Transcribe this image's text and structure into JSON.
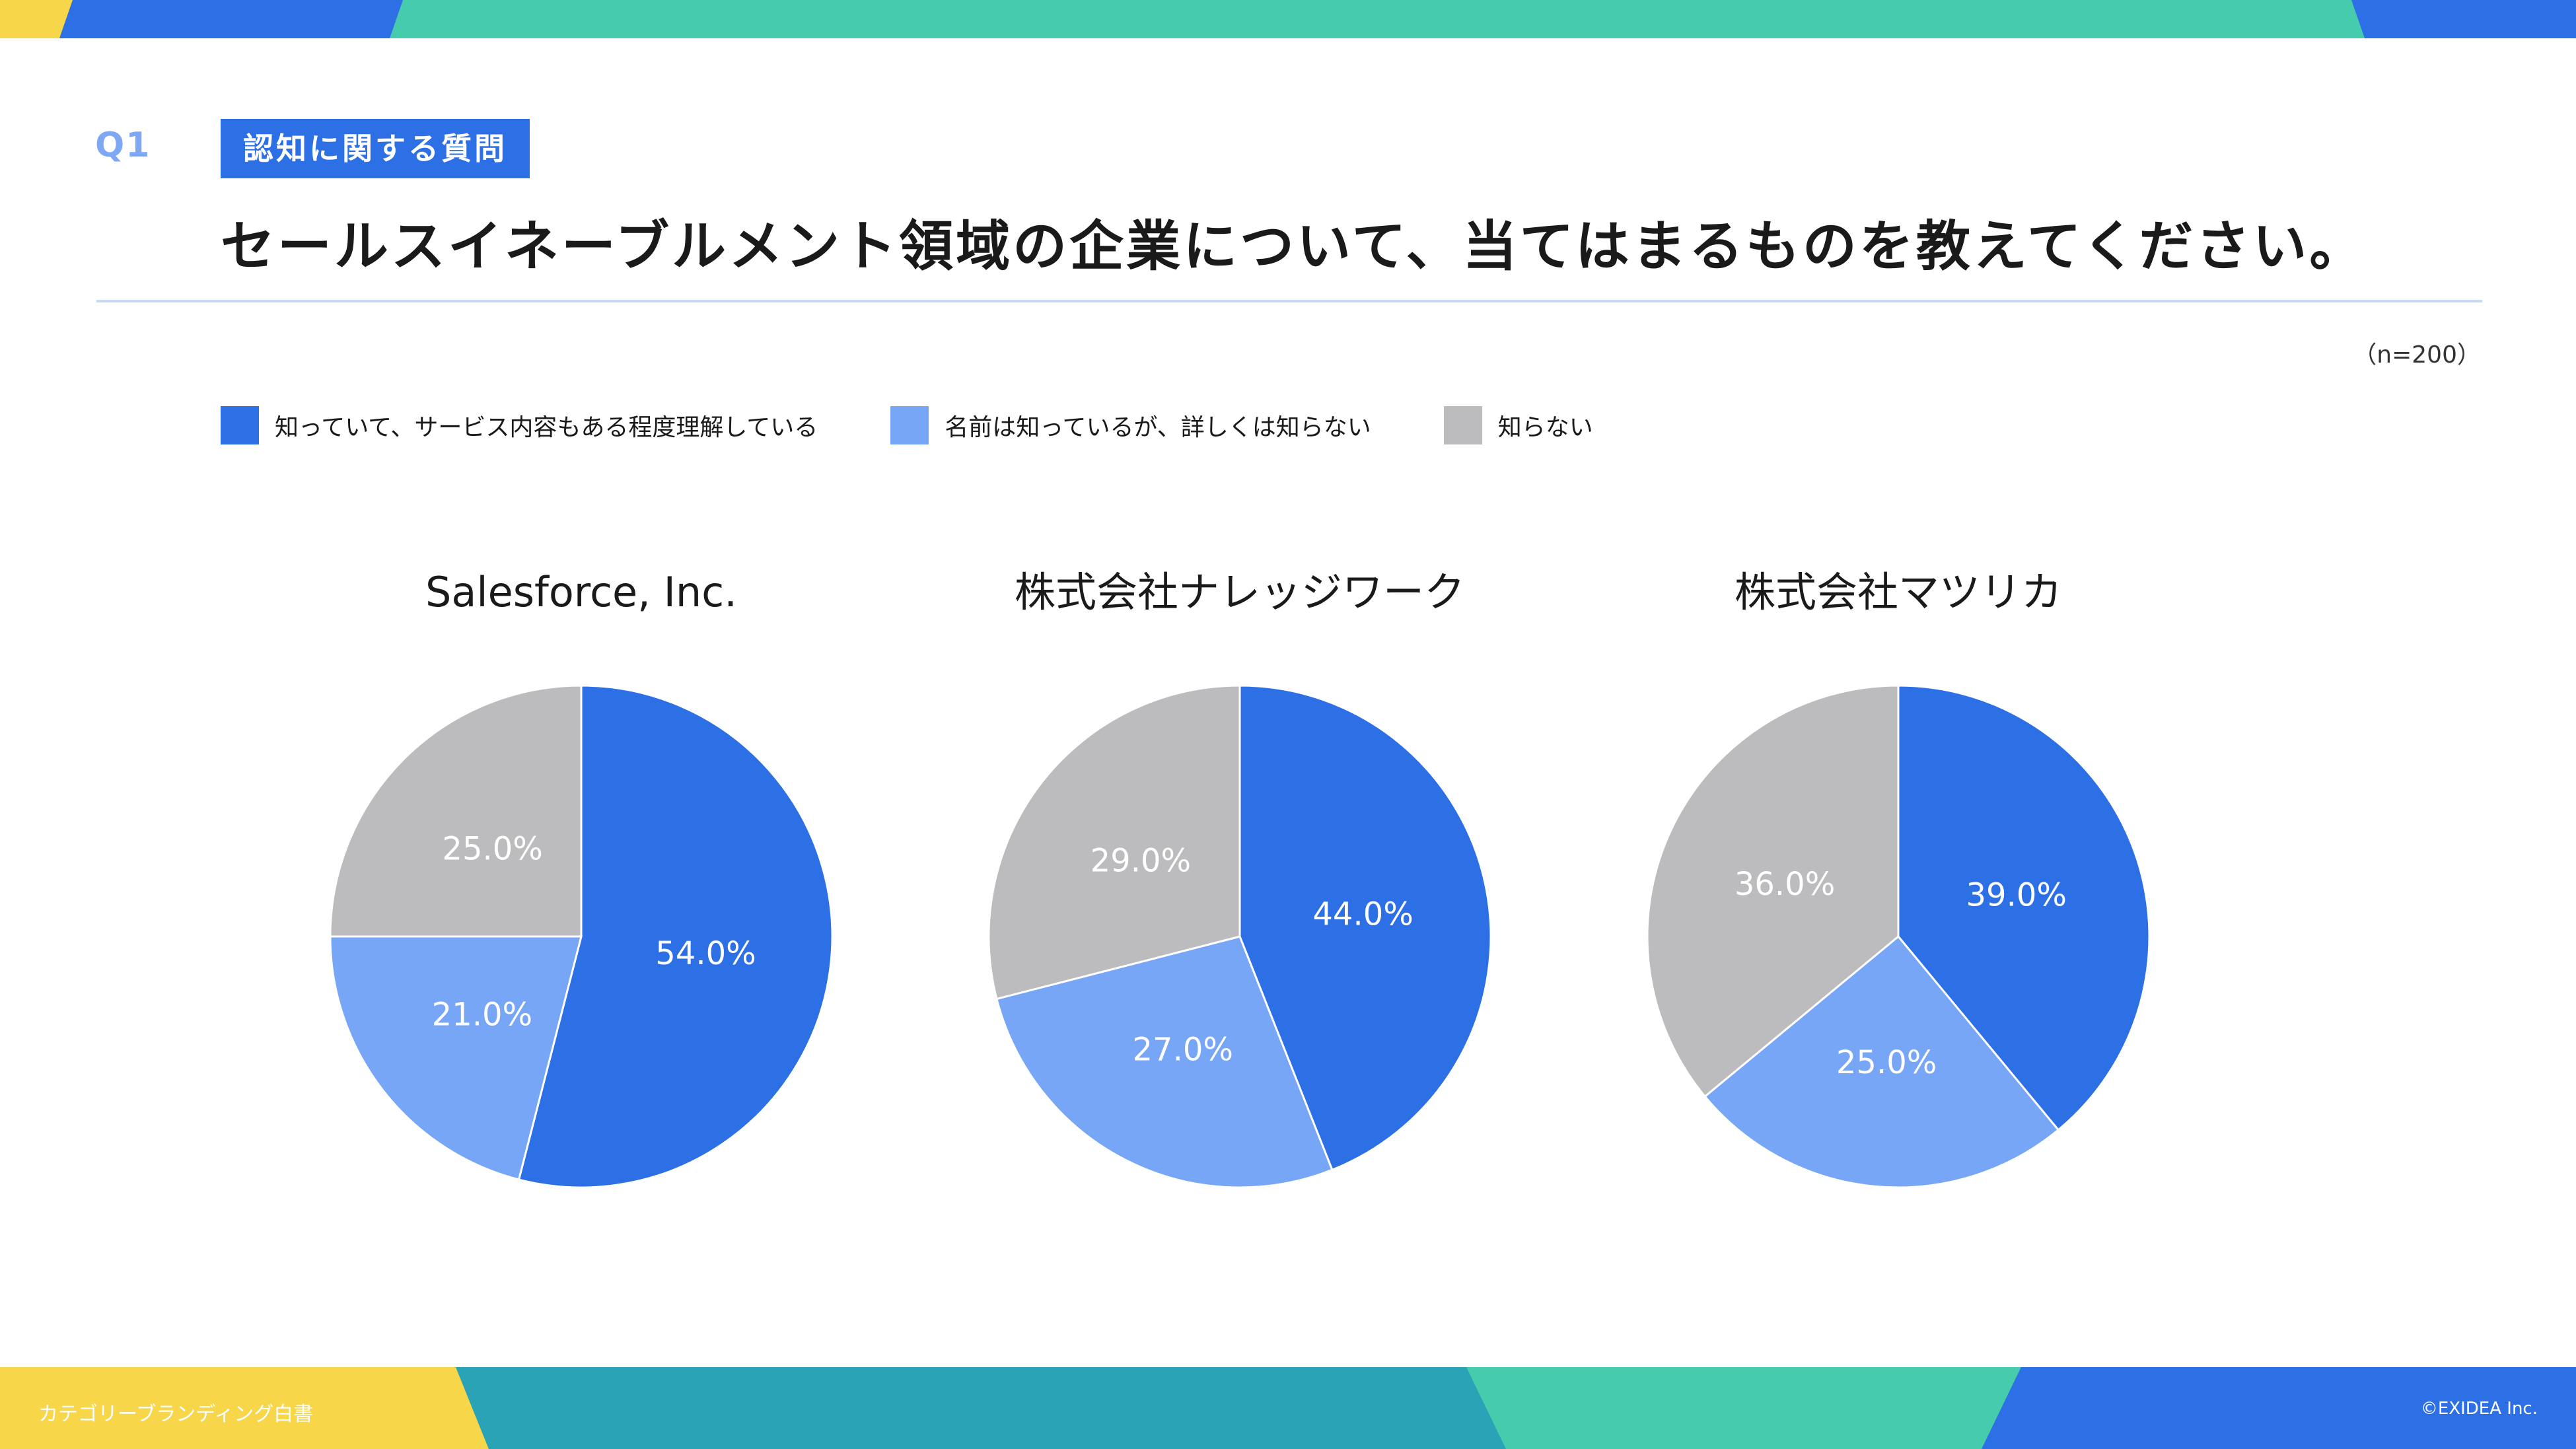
{
  "header": {
    "question_number": "Q1",
    "category_badge": "認知に関する質問",
    "question_text": "セールスイネーブルメント領域の企業について、当てはまるものを教えてください。",
    "sample_size": "（n=200）"
  },
  "legend": [
    {
      "label": "知っていて、サービス内容もある程度理解している",
      "color": "#2d70e5"
    },
    {
      "label": "名前は知っているが、詳しくは知らない",
      "color": "#76a6f5"
    },
    {
      "label": "知らない",
      "color": "#bcbcbe"
    }
  ],
  "chart_data": [
    {
      "type": "pie",
      "title": "Salesforce, Inc.",
      "labels": [
        "知っていて、サービス内容もある程度理解している",
        "名前は知っているが、詳しくは知らない",
        "知らない"
      ],
      "values": [
        54.0,
        21.0,
        25.0
      ],
      "value_labels": [
        "54.0%",
        "21.0%",
        "25.0%"
      ],
      "colors": [
        "#2d70e5",
        "#76a6f5",
        "#bcbcbe"
      ],
      "legend": "top-left"
    },
    {
      "type": "pie",
      "title": "株式会社ナレッジワーク",
      "labels": [
        "知っていて、サービス内容もある程度理解している",
        "名前は知っているが、詳しくは知らない",
        "知らない"
      ],
      "values": [
        44.0,
        27.0,
        29.0
      ],
      "value_labels": [
        "44.0%",
        "27.0%",
        "29.0%"
      ],
      "colors": [
        "#2d70e5",
        "#76a6f5",
        "#bcbcbe"
      ],
      "legend": "top-left"
    },
    {
      "type": "pie",
      "title": "株式会社マツリカ",
      "labels": [
        "知っていて、サービス内容もある程度理解している",
        "名前は知っているが、詳しくは知らない",
        "知らない"
      ],
      "values": [
        39.0,
        25.0,
        36.0
      ],
      "value_labels": [
        "39.0%",
        "25.0%",
        "36.0%"
      ],
      "colors": [
        "#2d70e5",
        "#76a6f5",
        "#bcbcbe"
      ],
      "legend": "top-left"
    }
  ],
  "footer": {
    "publication_title": "カテゴリーブランディング白書",
    "copyright": "©EXIDEA Inc."
  }
}
